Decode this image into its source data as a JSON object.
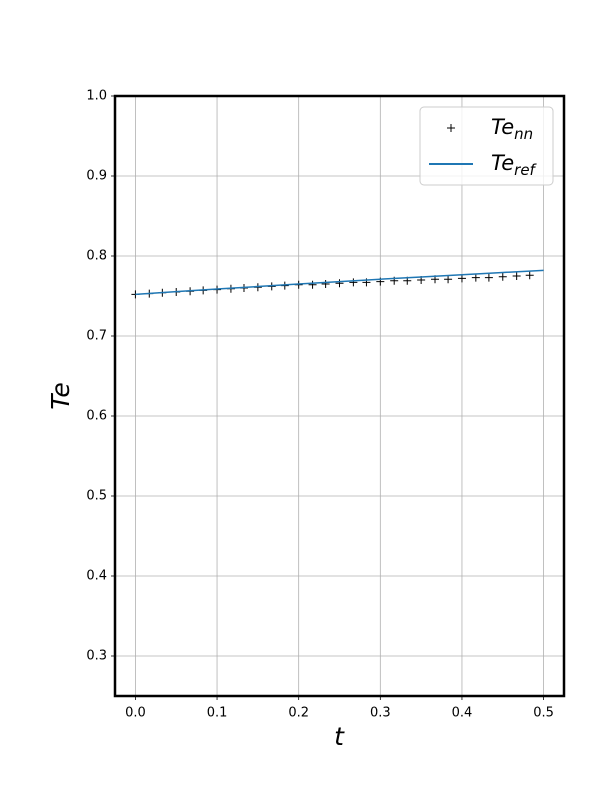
{
  "chart_data": {
    "type": "line",
    "xlabel": "t",
    "ylabel": "Te",
    "xlim": [
      -0.025,
      0.525
    ],
    "xticks": [
      {
        "value": 0,
        "label": "0.0"
      },
      0.1,
      0.2,
      0.3,
      0.4,
      0.5
    ],
    "ylim": [
      0.25,
      1.0
    ],
    "yticks": [
      0.3,
      0.4,
      0.5,
      0.6,
      0.7,
      0.8,
      0.9,
      {
        "value": 1,
        "label": "1.0"
      }
    ],
    "grid": true,
    "legend": "upper right",
    "series": [
      {
        "name": "Te",
        "name_subscript": "nn",
        "kind": "scatter",
        "marker": "+",
        "color": "#000000",
        "x": [
          0,
          0.017,
          0.033,
          0.05,
          0.067,
          0.083,
          0.1,
          0.117,
          0.133,
          0.15,
          0.167,
          0.183,
          0.2,
          0.217,
          0.233,
          0.25,
          0.267,
          0.283,
          0.3,
          0.317,
          0.333,
          0.35,
          0.367,
          0.383,
          0.4,
          0.417,
          0.433,
          0.45,
          0.467,
          0.483
        ],
        "values": [
          0.752,
          0.753,
          0.754,
          0.755,
          0.756,
          0.757,
          0.758,
          0.759,
          0.76,
          0.761,
          0.762,
          0.763,
          0.764,
          0.764,
          0.765,
          0.766,
          0.767,
          0.767,
          0.768,
          0.769,
          0.769,
          0.77,
          0.771,
          0.771,
          0.772,
          0.773,
          0.773,
          0.774,
          0.775,
          0.776
        ]
      },
      {
        "name": "Te",
        "name_subscript": "ref",
        "kind": "line",
        "color": "#1f77b4",
        "x": [
          0,
          0.05,
          0.1,
          0.15,
          0.2,
          0.25,
          0.3,
          0.35,
          0.4,
          0.45,
          0.5
        ],
        "values": [
          0.752,
          0.7554,
          0.7587,
          0.7618,
          0.765,
          0.768,
          0.771,
          0.7738,
          0.7766,
          0.7794,
          0.782
        ]
      }
    ]
  }
}
